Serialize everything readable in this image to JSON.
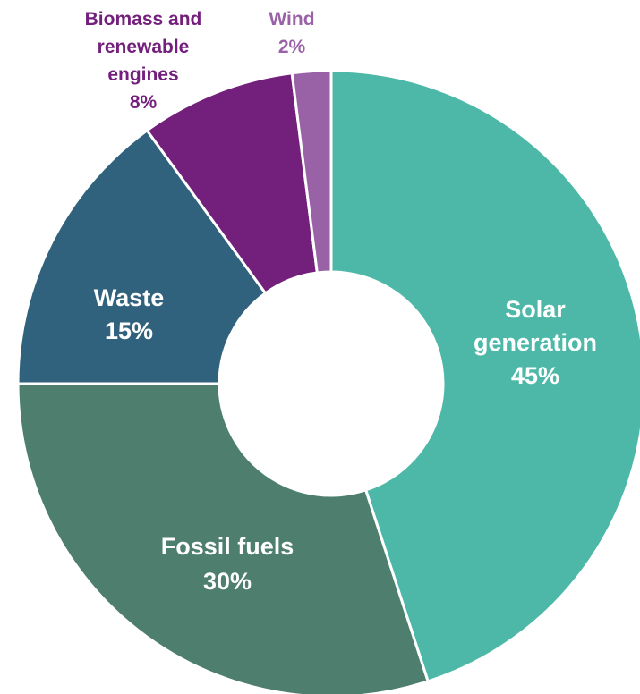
{
  "chart_data": {
    "type": "pie",
    "donut": true,
    "start": "top",
    "direction": "clockwise",
    "legend": "none",
    "slices": [
      {
        "lines": [
          "Solar",
          "generation"
        ],
        "pct": "45%",
        "value": 45,
        "color": "#4db8a8",
        "label_color": "#ffffff"
      },
      {
        "lines": [
          "Fossil fuels"
        ],
        "pct": "30%",
        "value": 30,
        "color": "#4e7f6e",
        "label_color": "#ffffff"
      },
      {
        "lines": [
          "Waste"
        ],
        "pct": "15%",
        "value": 15,
        "color": "#31627d",
        "label_color": "#ffffff"
      },
      {
        "lines": [
          "Biomass and",
          "renewable",
          "engines"
        ],
        "pct": "8%",
        "value": 8,
        "color": "#731f7c",
        "label_color": "#731f7c"
      },
      {
        "lines": [
          "Wind"
        ],
        "pct": "2%",
        "value": 2,
        "color": "#9a62a6",
        "label_color": "#9a62a6"
      }
    ]
  }
}
